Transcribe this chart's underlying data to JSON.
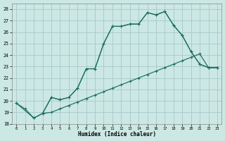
{
  "xlabel": "Humidex (Indice chaleur)",
  "bg_color": "#cce8e4",
  "grid_color": "#aacccc",
  "line_color": "#1a6e5e",
  "xlim": [
    -0.5,
    23.5
  ],
  "ylim": [
    18,
    28.5
  ],
  "xticks": [
    0,
    1,
    2,
    3,
    4,
    5,
    6,
    7,
    8,
    9,
    10,
    11,
    12,
    13,
    14,
    15,
    16,
    17,
    18,
    19,
    20,
    21,
    22,
    23
  ],
  "yticks": [
    18,
    19,
    20,
    21,
    22,
    23,
    24,
    25,
    26,
    27,
    28
  ],
  "line1_x": [
    0,
    1,
    2,
    3,
    4,
    5,
    6,
    7,
    8,
    9,
    10,
    11,
    12,
    13,
    14,
    15,
    16,
    17,
    18,
    19,
    20,
    21,
    22,
    23
  ],
  "line1_y": [
    19.8,
    19.3,
    18.5,
    18.9,
    20.3,
    20.1,
    20.3,
    21.1,
    22.8,
    22.8,
    25.0,
    26.5,
    26.5,
    26.7,
    26.7,
    27.7,
    27.5,
    27.8,
    26.6,
    25.7,
    24.3,
    23.2,
    22.9,
    22.9
  ],
  "line2_x": [
    0,
    2,
    3,
    4,
    5,
    6,
    7,
    8,
    9,
    10,
    11,
    12,
    13,
    14,
    15,
    16,
    17,
    18,
    19,
    20,
    21,
    22,
    23
  ],
  "line2_y": [
    19.8,
    18.5,
    18.9,
    19.0,
    19.3,
    19.6,
    19.9,
    20.2,
    20.5,
    20.8,
    21.1,
    21.4,
    21.7,
    22.0,
    22.3,
    22.6,
    22.9,
    23.2,
    23.5,
    23.8,
    24.1,
    22.9,
    22.9
  ],
  "line3_x": [
    3,
    4,
    5,
    6,
    7,
    8,
    9,
    10,
    11,
    12,
    13,
    14,
    15,
    16,
    17,
    18,
    19,
    20,
    21,
    22,
    23
  ],
  "line3_y": [
    18.9,
    20.3,
    20.1,
    20.3,
    21.1,
    22.8,
    22.8,
    25.0,
    26.5,
    26.5,
    26.7,
    26.7,
    27.7,
    27.5,
    27.8,
    26.6,
    25.7,
    24.3,
    23.2,
    22.9,
    22.9
  ]
}
